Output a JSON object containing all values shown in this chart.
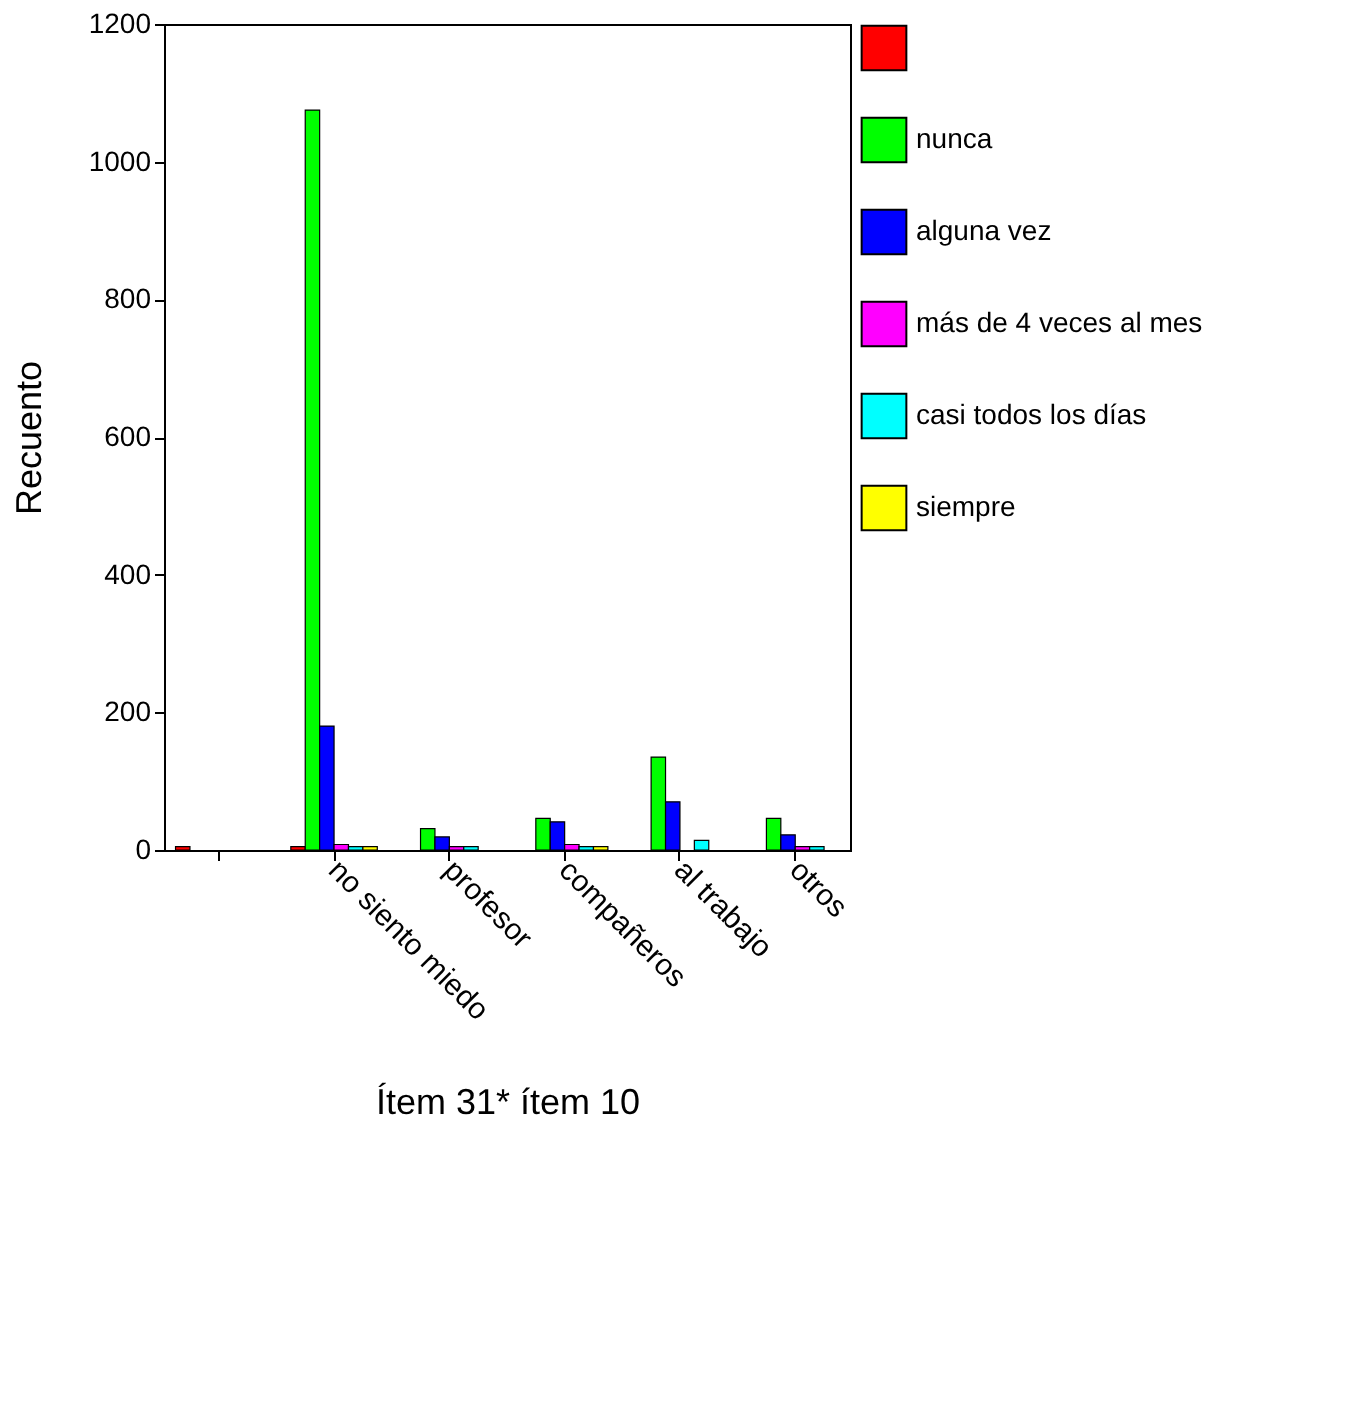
{
  "chart_data": {
    "type": "bar",
    "xlabel": "Ítem 31* ítem 10",
    "ylabel": "Recuento",
    "categories": [
      null,
      "no siento miedo",
      "profesor",
      "compañeros",
      "al trabajo",
      "otros"
    ],
    "series": [
      {
        "color": "#ff0000",
        "values": [
          5,
          5,
          null,
          null,
          null,
          null
        ]
      },
      {
        "name": "nunca",
        "color": "#00ff00",
        "values": [
          null,
          1075,
          31,
          46,
          135,
          46
        ]
      },
      {
        "name": "alguna vez",
        "color": "#0000ff",
        "values": [
          null,
          180,
          19,
          41,
          70,
          22
        ]
      },
      {
        "name": "más de 4 veces al mes",
        "color": "#ff00ff",
        "values": [
          null,
          8,
          5,
          8,
          null,
          5
        ]
      },
      {
        "name": "casi todos los días",
        "color": "#00ffff",
        "values": [
          null,
          5,
          5,
          5,
          14,
          5
        ]
      },
      {
        "name": "siempre",
        "color": "#ffff00",
        "values": [
          null,
          5,
          null,
          5,
          null,
          null
        ]
      }
    ],
    "ylim": [
      0,
      1200
    ],
    "yticks": [
      0,
      200,
      400,
      600,
      800,
      1000,
      1200
    ],
    "grid": false,
    "legend": "right"
  }
}
